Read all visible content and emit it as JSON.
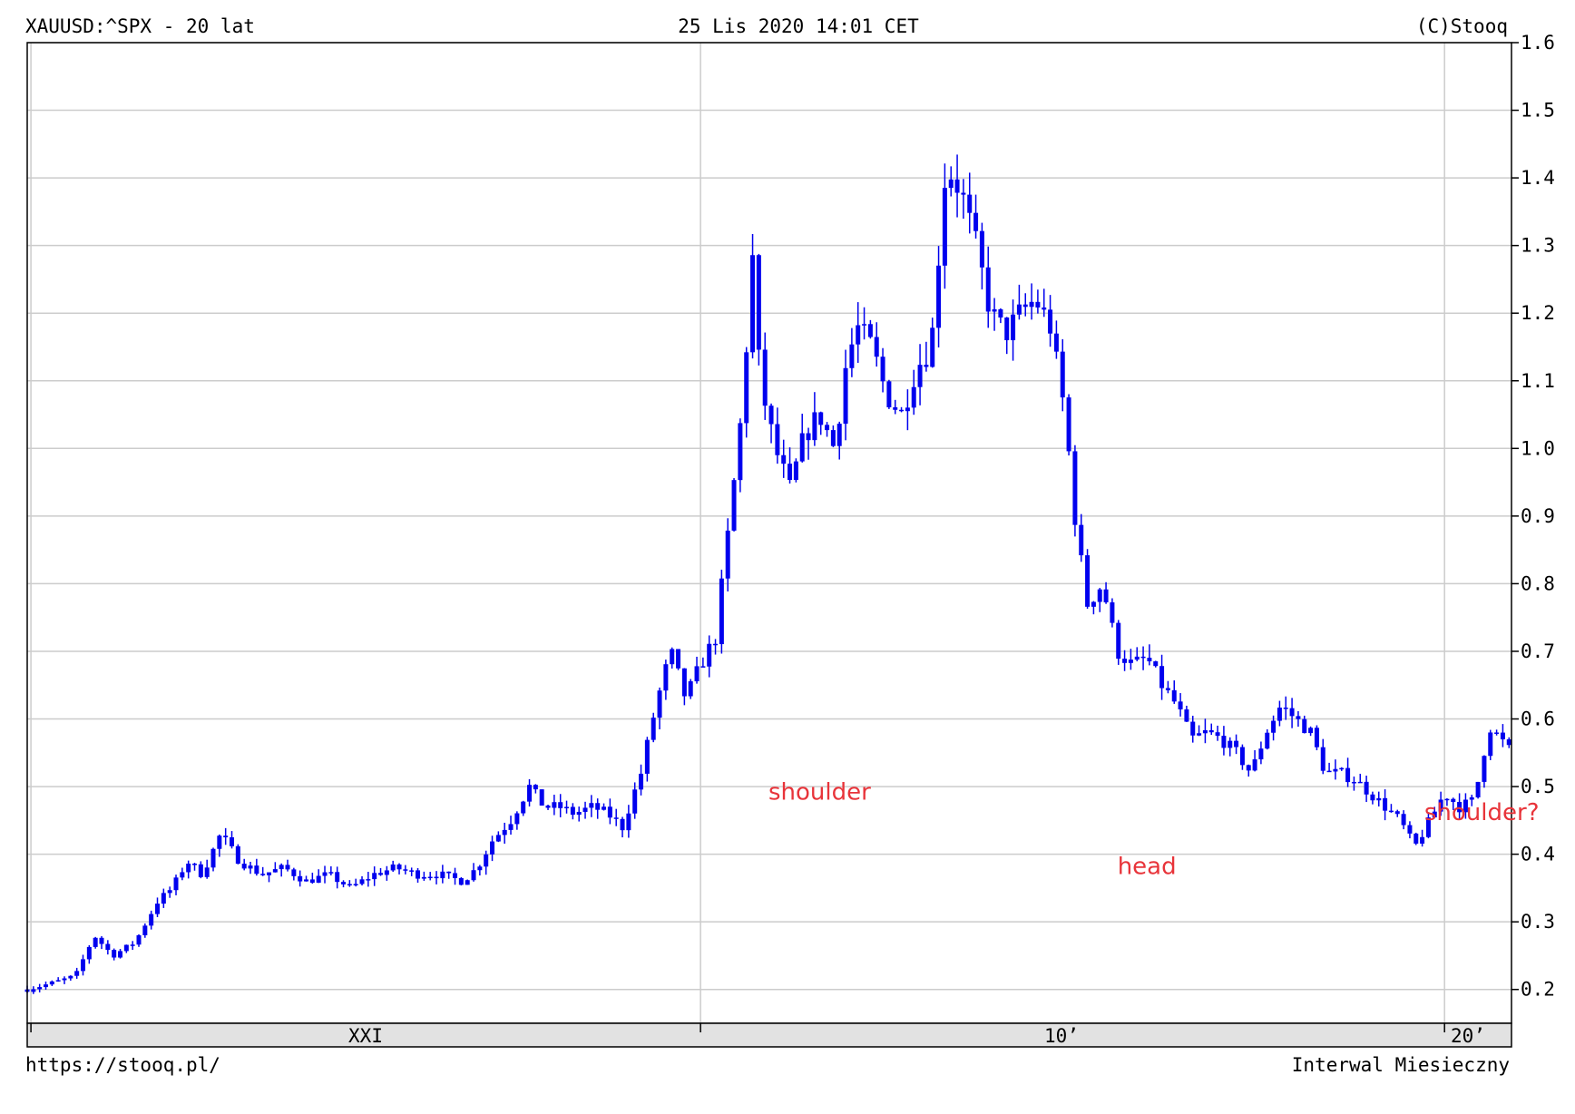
{
  "header": {
    "symbol_title": "XAUUSD:^SPX - 20 lat",
    "timestamp": "25 Lis 2020 14:01 CET",
    "copyright": "(C)Stooq"
  },
  "footer": {
    "url": "https://stooq.pl/",
    "interval": "Interwal Miesieczny"
  },
  "colors": {
    "series": "#0000ee",
    "grid": "#cccccc",
    "annotation": "#e8343a",
    "axis_strip": "#e2e2e2"
  },
  "chart_data": {
    "type": "candlestick",
    "title": "XAUUSD:^SPX - 20 lat",
    "interval": "monthly",
    "x_range": [
      2000.95,
      2020.9
    ],
    "ylim": [
      0.15,
      1.6
    ],
    "y_ticks": [
      "0.2",
      "0.3",
      "0.4",
      "0.5",
      "0.6",
      "0.7",
      "0.8",
      "0.9",
      "1.0",
      "1.1",
      "1.2",
      "1.3",
      "1.4",
      "1.5",
      "1.6"
    ],
    "x_tick_labels": [
      {
        "x": 2001.0,
        "label": "XXI"
      },
      {
        "x": 2010.0,
        "label": "10’"
      },
      {
        "x": 2020.0,
        "label": "20’"
      }
    ],
    "x_gridlines": [
      2001,
      2010,
      2020
    ],
    "grid": true,
    "annotations": [
      {
        "text": "shoulder",
        "x": 2011.6,
        "y": 0.51
      },
      {
        "text": "head",
        "x": 2016.0,
        "y": 0.4
      },
      {
        "text": "shoulder?",
        "x": 2020.5,
        "y": 0.48
      }
    ],
    "anchors": [
      [
        2000.95,
        0.2
      ],
      [
        2001.3,
        0.21
      ],
      [
        2001.6,
        0.22
      ],
      [
        2001.85,
        0.28
      ],
      [
        2002.1,
        0.25
      ],
      [
        2002.4,
        0.27
      ],
      [
        2002.7,
        0.33
      ],
      [
        2002.9,
        0.35
      ],
      [
        2003.1,
        0.39
      ],
      [
        2003.3,
        0.37
      ],
      [
        2003.55,
        0.43
      ],
      [
        2003.8,
        0.39
      ],
      [
        2004.1,
        0.37
      ],
      [
        2004.4,
        0.38
      ],
      [
        2004.7,
        0.36
      ],
      [
        2005.0,
        0.37
      ],
      [
        2005.3,
        0.35
      ],
      [
        2005.6,
        0.37
      ],
      [
        2005.9,
        0.38
      ],
      [
        2006.2,
        0.37
      ],
      [
        2006.5,
        0.37
      ],
      [
        2006.8,
        0.36
      ],
      [
        2007.0,
        0.38
      ],
      [
        2007.2,
        0.42
      ],
      [
        2007.45,
        0.45
      ],
      [
        2007.7,
        0.5
      ],
      [
        2007.9,
        0.47
      ],
      [
        2008.1,
        0.47
      ],
      [
        2008.3,
        0.46
      ],
      [
        2008.55,
        0.47
      ],
      [
        2008.75,
        0.46
      ],
      [
        2008.95,
        0.44
      ],
      [
        2009.2,
        0.52
      ],
      [
        2009.4,
        0.62
      ],
      [
        2009.6,
        0.7
      ],
      [
        2009.8,
        0.63
      ],
      [
        2010.0,
        0.68
      ],
      [
        2010.2,
        0.72
      ],
      [
        2010.4,
        0.9
      ],
      [
        2010.55,
        1.05
      ],
      [
        2010.7,
        1.28
      ],
      [
        2010.8,
        1.1
      ],
      [
        2011.0,
        1.0
      ],
      [
        2011.2,
        0.94
      ],
      [
        2011.4,
        1.02
      ],
      [
        2011.6,
        1.05
      ],
      [
        2011.8,
        1.0
      ],
      [
        2011.95,
        1.12
      ],
      [
        2012.1,
        1.18
      ],
      [
        2012.3,
        1.15
      ],
      [
        2012.5,
        1.08
      ],
      [
        2012.7,
        1.05
      ],
      [
        2012.9,
        1.12
      ],
      [
        2013.1,
        1.15
      ],
      [
        2013.3,
        1.42
      ],
      [
        2013.5,
        1.38
      ],
      [
        2013.7,
        1.3
      ],
      [
        2013.9,
        1.2
      ],
      [
        2014.1,
        1.17
      ],
      [
        2014.3,
        1.2
      ],
      [
        2014.5,
        1.22
      ],
      [
        2014.7,
        1.18
      ],
      [
        2014.9,
        1.05
      ],
      [
        2015.05,
        0.88
      ],
      [
        2015.2,
        0.77
      ],
      [
        2015.4,
        0.8
      ],
      [
        2015.6,
        0.7
      ],
      [
        2015.8,
        0.68
      ],
      [
        2016.0,
        0.69
      ],
      [
        2016.2,
        0.65
      ],
      [
        2016.4,
        0.62
      ],
      [
        2016.6,
        0.57
      ],
      [
        2016.8,
        0.58
      ],
      [
        2017.0,
        0.57
      ],
      [
        2017.2,
        0.55
      ],
      [
        2017.4,
        0.52
      ],
      [
        2017.6,
        0.58
      ],
      [
        2017.8,
        0.62
      ],
      [
        2018.0,
        0.6
      ],
      [
        2018.2,
        0.58
      ],
      [
        2018.4,
        0.52
      ],
      [
        2018.6,
        0.52
      ],
      [
        2018.8,
        0.51
      ],
      [
        2019.0,
        0.49
      ],
      [
        2019.2,
        0.47
      ],
      [
        2019.4,
        0.45
      ],
      [
        2019.6,
        0.41
      ],
      [
        2019.8,
        0.45
      ],
      [
        2020.0,
        0.49
      ],
      [
        2020.2,
        0.47
      ],
      [
        2020.4,
        0.48
      ],
      [
        2020.6,
        0.59
      ],
      [
        2020.75,
        0.57
      ],
      [
        2020.9,
        0.55
      ]
    ]
  }
}
